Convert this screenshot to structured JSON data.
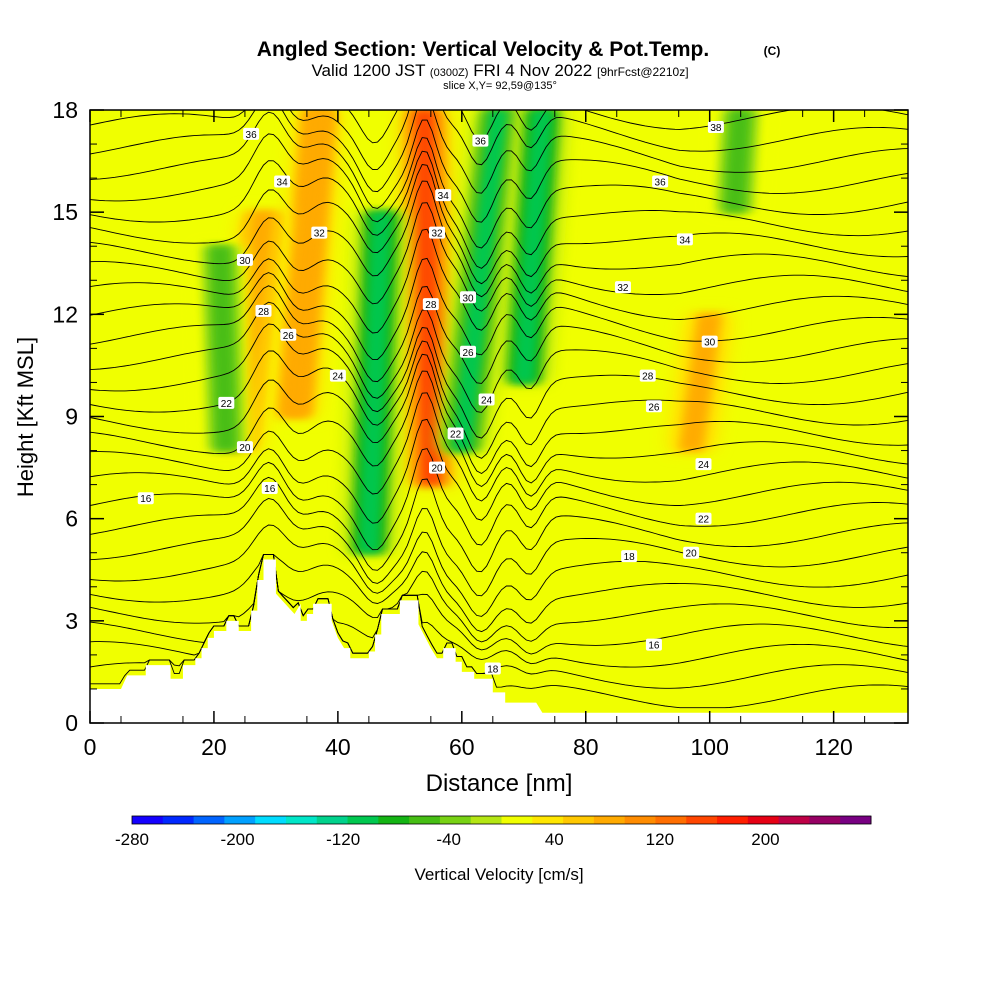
{
  "header": {
    "title": "Angled Section: Vertical Velocity & Pot.Temp.",
    "copyright": "(C)",
    "valid_prefix": "Valid 1200 JST",
    "valid_utc": "(0300Z)",
    "valid_date": "FRI 4 Nov 2022",
    "forecast": "[9hrFcst@2210z]",
    "slice": "slice X,Y= 92,59@135°"
  },
  "chart_data": {
    "type": "heatmap",
    "title": "Angled Section: Vertical Velocity & Pot.Temp.",
    "xlabel": "Distance [nm]",
    "ylabel": "Height [Kft MSL]",
    "xlim": [
      0,
      132
    ],
    "ylim": [
      0,
      18
    ],
    "x_ticks": [
      "0",
      "20",
      "40",
      "60",
      "80",
      "100",
      "120"
    ],
    "y_ticks": [
      "0",
      "3",
      "6",
      "9",
      "12",
      "15",
      "18"
    ],
    "colorbar": {
      "label": "Vertical Velocity [cm/s]",
      "tick_labels": [
        "-280",
        "-200",
        "-120",
        "-40",
        "40",
        "120",
        "200"
      ],
      "min": -280,
      "max": 280,
      "colors": [
        "#1400ff",
        "#0028ff",
        "#0064ff",
        "#00a0ff",
        "#00dcff",
        "#00e6c8",
        "#00d28c",
        "#00c850",
        "#14b414",
        "#46be14",
        "#78d214",
        "#b4e614",
        "#f0ff00",
        "#ffe600",
        "#ffc800",
        "#ffaa00",
        "#ff8c00",
        "#ff6e00",
        "#ff4600",
        "#ff1e00",
        "#e60014",
        "#be0046",
        "#960064",
        "#780082"
      ]
    },
    "background_value_cm_s": 20,
    "updraft_bands": [
      {
        "x_top": 54,
        "x_bottom": 55,
        "y_top": 18,
        "y_bottom": 7,
        "peak_cm_s": 140
      },
      {
        "x_top": 37,
        "x_bottom": 33,
        "y_top": 18,
        "y_bottom": 9,
        "peak_cm_s": 90
      },
      {
        "x_top": 28,
        "x_bottom": 24,
        "y_top": 15,
        "y_bottom": 8,
        "peak_cm_s": 80
      },
      {
        "x_top": 100,
        "x_bottom": 97,
        "y_top": 12,
        "y_bottom": 8,
        "peak_cm_s": 70
      }
    ],
    "downdraft_bands": [
      {
        "x_top": 47,
        "x_bottom": 45,
        "y_top": 15,
        "y_bottom": 5,
        "peak_cm_s": -110
      },
      {
        "x_top": 66,
        "x_bottom": 60,
        "y_top": 18,
        "y_bottom": 8,
        "peak_cm_s": -100
      },
      {
        "x_top": 73,
        "x_bottom": 70,
        "y_top": 18,
        "y_bottom": 10,
        "peak_cm_s": -110
      },
      {
        "x_top": 21,
        "x_bottom": 22,
        "y_top": 14,
        "y_bottom": 8,
        "peak_cm_s": -60
      },
      {
        "x_top": 105,
        "x_bottom": 104,
        "y_top": 18,
        "y_bottom": 15,
        "peak_cm_s": -50
      }
    ],
    "terrain_profile": [
      [
        0,
        1.0
      ],
      [
        5,
        1.0
      ],
      [
        6,
        1.4
      ],
      [
        9,
        1.4
      ],
      [
        9,
        1.7
      ],
      [
        13,
        1.7
      ],
      [
        13,
        1.3
      ],
      [
        15,
        1.3
      ],
      [
        15,
        1.7
      ],
      [
        17,
        1.7
      ],
      [
        17,
        1.9
      ],
      [
        18,
        1.9
      ],
      [
        18,
        2.2
      ],
      [
        19,
        2.2
      ],
      [
        19,
        2.5
      ],
      [
        20,
        2.5
      ],
      [
        20,
        2.7
      ],
      [
        22,
        2.7
      ],
      [
        22,
        3.0
      ],
      [
        24,
        3.0
      ],
      [
        24,
        2.7
      ],
      [
        26,
        2.7
      ],
      [
        26,
        3.3
      ],
      [
        27,
        3.3
      ],
      [
        27,
        4.2
      ],
      [
        28,
        4.2
      ],
      [
        28,
        4.8
      ],
      [
        30,
        4.8
      ],
      [
        30,
        3.8
      ],
      [
        33,
        3.2
      ],
      [
        34,
        3.5
      ],
      [
        34,
        3.0
      ],
      [
        35,
        3.0
      ],
      [
        35,
        3.2
      ],
      [
        36,
        3.2
      ],
      [
        36,
        3.5
      ],
      [
        39,
        3.5
      ],
      [
        39,
        3.0
      ],
      [
        40,
        2.5
      ],
      [
        41,
        2.2
      ],
      [
        42,
        2.2
      ],
      [
        42,
        1.9
      ],
      [
        45,
        1.9
      ],
      [
        45,
        2.1
      ],
      [
        46,
        2.1
      ],
      [
        46,
        2.6
      ],
      [
        47,
        2.6
      ],
      [
        47,
        3.2
      ],
      [
        50,
        3.2
      ],
      [
        50,
        3.6
      ],
      [
        53,
        3.6
      ],
      [
        53,
        2.9
      ],
      [
        55,
        2.2
      ],
      [
        56,
        1.9
      ],
      [
        57,
        1.9
      ],
      [
        57,
        2.2
      ],
      [
        59,
        2.2
      ],
      [
        59,
        1.8
      ],
      [
        60,
        1.8
      ],
      [
        60,
        1.5
      ],
      [
        62,
        1.5
      ],
      [
        62,
        1.3
      ],
      [
        65,
        1.3
      ],
      [
        65,
        0.9
      ],
      [
        67,
        0.9
      ],
      [
        67,
        0.6
      ],
      [
        72,
        0.6
      ],
      [
        73,
        0.3
      ],
      [
        132,
        0.3
      ]
    ],
    "isentropes_K_labels": [
      "16",
      "18",
      "20",
      "22",
      "24",
      "26",
      "28",
      "30",
      "32",
      "34",
      "36",
      "38"
    ],
    "isentrope_labels": [
      {
        "text": "36",
        "x": 26,
        "y": 17.3
      },
      {
        "text": "34",
        "x": 31,
        "y": 15.9
      },
      {
        "text": "32",
        "x": 37,
        "y": 14.4
      },
      {
        "text": "30",
        "x": 25,
        "y": 13.6
      },
      {
        "text": "28",
        "x": 28,
        "y": 12.1
      },
      {
        "text": "26",
        "x": 32,
        "y": 11.4
      },
      {
        "text": "24",
        "x": 40,
        "y": 10.2
      },
      {
        "text": "22",
        "x": 22,
        "y": 9.4
      },
      {
        "text": "20",
        "x": 25,
        "y": 8.1
      },
      {
        "text": "16",
        "x": 29,
        "y": 6.9
      },
      {
        "text": "16",
        "x": 9,
        "y": 6.6
      },
      {
        "text": "36",
        "x": 63,
        "y": 17.1
      },
      {
        "text": "34",
        "x": 57,
        "y": 15.5
      },
      {
        "text": "32",
        "x": 56,
        "y": 14.4
      },
      {
        "text": "30",
        "x": 61,
        "y": 12.5
      },
      {
        "text": "28",
        "x": 55,
        "y": 12.3
      },
      {
        "text": "26",
        "x": 61,
        "y": 10.9
      },
      {
        "text": "24",
        "x": 64,
        "y": 9.5
      },
      {
        "text": "22",
        "x": 59,
        "y": 8.5
      },
      {
        "text": "20",
        "x": 56,
        "y": 7.5
      },
      {
        "text": "18",
        "x": 65,
        "y": 1.6
      },
      {
        "text": "38",
        "x": 101,
        "y": 17.5
      },
      {
        "text": "36",
        "x": 92,
        "y": 15.9
      },
      {
        "text": "34",
        "x": 96,
        "y": 14.2
      },
      {
        "text": "32",
        "x": 86,
        "y": 12.8
      },
      {
        "text": "30",
        "x": 100,
        "y": 11.2
      },
      {
        "text": "28",
        "x": 90,
        "y": 10.2
      },
      {
        "text": "26",
        "x": 91,
        "y": 9.3
      },
      {
        "text": "24",
        "x": 99,
        "y": 7.6
      },
      {
        "text": "22",
        "x": 99,
        "y": 6.0
      },
      {
        "text": "20",
        "x": 97,
        "y": 5.0
      },
      {
        "text": "18",
        "x": 87,
        "y": 4.9
      },
      {
        "text": "16",
        "x": 91,
        "y": 2.3
      }
    ]
  }
}
